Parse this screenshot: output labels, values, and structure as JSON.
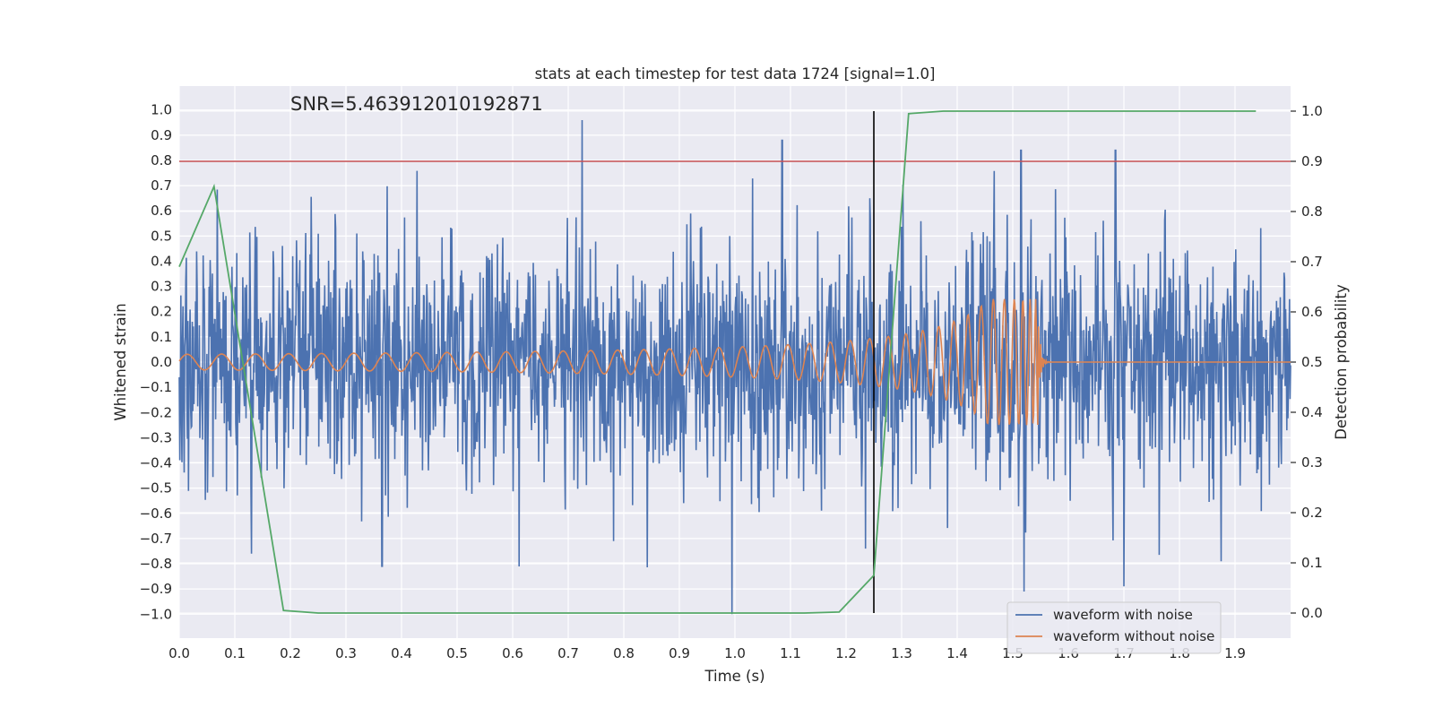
{
  "chart_data": {
    "type": "line",
    "title": "stats at each timestep for test data 1724 [signal=1.0]",
    "xlabel": "Time (s)",
    "ylabel": "Whitened strain",
    "y2label": "Detection probability",
    "xlim": [
      0.0,
      2.0
    ],
    "ylim": [
      -1.095,
      1.095
    ],
    "y2lim": [
      -0.05,
      1.05
    ],
    "xticks": [
      "0.0",
      "0.1",
      "0.2",
      "0.3",
      "0.4",
      "0.5",
      "0.6",
      "0.7",
      "0.8",
      "0.9",
      "1.0",
      "1.1",
      "1.2",
      "1.3",
      "1.4",
      "1.5",
      "1.6",
      "1.7",
      "1.8",
      "1.9"
    ],
    "yticks": [
      "1.0",
      "0.9",
      "0.8",
      "0.7",
      "0.6",
      "0.5",
      "0.4",
      "0.3",
      "0.2",
      "0.1",
      "0.0",
      "−0.1",
      "−0.2",
      "−0.3",
      "−0.4",
      "−0.5",
      "−0.6",
      "−0.7",
      "−0.8",
      "−0.9",
      "−1.0"
    ],
    "y2ticks": [
      "0.0",
      "0.1",
      "0.2",
      "0.3",
      "0.4",
      "0.5",
      "0.6",
      "0.7",
      "0.8",
      "0.9",
      "1.0"
    ],
    "annotation": "SNR=5.463912010192871",
    "legend": {
      "location": "lower-right",
      "entries": [
        "waveform with noise",
        "waveform without noise"
      ]
    },
    "colors": {
      "noisy": "#4c72b0",
      "clean": "#dd8452",
      "probability": "#55a868",
      "threshold": "#c44e52",
      "marker": "#000000",
      "background": "#eaeaf2",
      "grid": "#ffffff"
    },
    "threshold_probability": 0.9,
    "detection_time": 1.25,
    "noise_spikes": [
      [
        0.13,
        -0.76
      ],
      [
        0.365,
        -0.81
      ],
      [
        0.725,
        0.96
      ],
      [
        0.995,
        -1.0
      ],
      [
        1.085,
        0.88
      ],
      [
        1.235,
        -0.74
      ],
      [
        1.515,
        0.84
      ],
      [
        1.52,
        -0.91
      ],
      [
        1.685,
        0.84
      ],
      [
        1.7,
        -0.89
      ],
      [
        1.875,
        -0.79
      ]
    ],
    "series": [
      {
        "name": "detection probability",
        "axis": "right",
        "x": [
          0.0,
          0.0625,
          0.1875,
          0.25,
          0.5,
          1.0,
          1.125,
          1.1875,
          1.25,
          1.3125,
          1.375,
          1.5,
          1.75,
          1.9375
        ],
        "y": [
          0.69,
          0.85,
          0.005,
          0.0,
          0.0,
          0.0,
          0.0,
          0.002,
          0.075,
          0.995,
          1.0,
          1.0,
          1.0,
          1.0
        ]
      },
      {
        "name": "waveform without noise",
        "axis": "left",
        "chirp": {
          "t_start": 0.0,
          "t_merge": 1.545,
          "t_end": 2.0,
          "f_start": 16,
          "amp_start": 0.012,
          "amp_peak": 0.25
        }
      },
      {
        "name": "waveform with noise",
        "axis": "left",
        "noise": {
          "samples": 2048,
          "sigma": 0.24,
          "clip": [
            -1.0,
            1.0
          ]
        }
      }
    ]
  }
}
